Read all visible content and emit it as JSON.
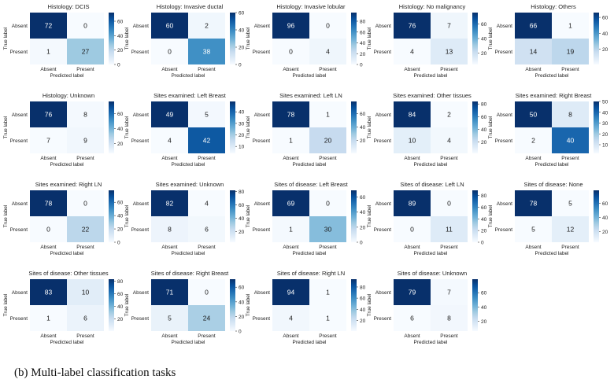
{
  "caption": "(b)  Multi-label classification tasks",
  "axis_labels": {
    "xlabel": "Predicted label",
    "ylabel": "True label",
    "classes": [
      "Absent",
      "Present"
    ]
  },
  "chart_data": [
    {
      "type": "heatmap",
      "title": "Histology: DCIS",
      "values": [
        [
          72,
          0
        ],
        [
          1,
          27
        ]
      ],
      "colorbar_ticks": [
        0,
        20,
        40,
        60
      ]
    },
    {
      "type": "heatmap",
      "title": "Histology: Invasive ductal",
      "values": [
        [
          60,
          2
        ],
        [
          0,
          38
        ]
      ],
      "colorbar_ticks": [
        0,
        20,
        40,
        60
      ]
    },
    {
      "type": "heatmap",
      "title": "Histology: Invasive lobular",
      "values": [
        [
          96,
          0
        ],
        [
          0,
          4
        ]
      ],
      "colorbar_ticks": [
        0,
        20,
        40,
        60,
        80
      ]
    },
    {
      "type": "heatmap",
      "title": "Histology: No malignancy",
      "values": [
        [
          76,
          7
        ],
        [
          4,
          13
        ]
      ],
      "colorbar_ticks": [
        20,
        40,
        60
      ]
    },
    {
      "type": "heatmap",
      "title": "Histology: Others",
      "values": [
        [
          66,
          1
        ],
        [
          14,
          19
        ]
      ],
      "colorbar_ticks": [
        20,
        40,
        60
      ]
    },
    {
      "type": "heatmap",
      "title": "Histology: Unknown",
      "values": [
        [
          76,
          8
        ],
        [
          7,
          9
        ]
      ],
      "colorbar_ticks": [
        20,
        40,
        60
      ]
    },
    {
      "type": "heatmap",
      "title": "Sites examined: Left Breast",
      "values": [
        [
          49,
          5
        ],
        [
          4,
          42
        ]
      ],
      "colorbar_ticks": [
        10,
        20,
        30,
        40
      ]
    },
    {
      "type": "heatmap",
      "title": "Sites examined: Left LN",
      "values": [
        [
          78,
          1
        ],
        [
          1,
          20
        ]
      ],
      "colorbar_ticks": [
        0,
        20,
        40,
        60
      ]
    },
    {
      "type": "heatmap",
      "title": "Sites examined: Other tissues",
      "values": [
        [
          84,
          2
        ],
        [
          10,
          4
        ]
      ],
      "colorbar_ticks": [
        20,
        40,
        60,
        80
      ]
    },
    {
      "type": "heatmap",
      "title": "Sites examined: Right Breast",
      "values": [
        [
          50,
          8
        ],
        [
          2,
          40
        ]
      ],
      "colorbar_ticks": [
        10,
        20,
        30,
        40,
        50
      ]
    },
    {
      "type": "heatmap",
      "title": "Sites examined: Right LN",
      "values": [
        [
          78,
          0
        ],
        [
          0,
          22
        ]
      ],
      "colorbar_ticks": [
        0,
        20,
        40,
        60
      ]
    },
    {
      "type": "heatmap",
      "title": "Sites examined: Unknown",
      "values": [
        [
          82,
          4
        ],
        [
          8,
          6
        ]
      ],
      "colorbar_ticks": [
        20,
        40,
        60,
        80
      ]
    },
    {
      "type": "heatmap",
      "title": "Sites of disease: Left Breast",
      "values": [
        [
          69,
          0
        ],
        [
          1,
          30
        ]
      ],
      "colorbar_ticks": [
        0,
        20,
        40,
        60
      ]
    },
    {
      "type": "heatmap",
      "title": "Sites of disease: Left LN",
      "values": [
        [
          89,
          0
        ],
        [
          0,
          11
        ]
      ],
      "colorbar_ticks": [
        0,
        20,
        40,
        60,
        80
      ]
    },
    {
      "type": "heatmap",
      "title": "Sites of disease: None",
      "values": [
        [
          78,
          5
        ],
        [
          5,
          12
        ]
      ],
      "colorbar_ticks": [
        20,
        40,
        60
      ]
    },
    {
      "type": "heatmap",
      "title": "Sites of disease: Other tissues",
      "values": [
        [
          83,
          10
        ],
        [
          1,
          6
        ]
      ],
      "colorbar_ticks": [
        0,
        20,
        40,
        60,
        80
      ]
    },
    {
      "type": "heatmap",
      "title": "Sites of disease: Right Breast",
      "values": [
        [
          71,
          0
        ],
        [
          5,
          24
        ]
      ],
      "colorbar_ticks": [
        0,
        20,
        40,
        60
      ]
    },
    {
      "type": "heatmap",
      "title": "Sites of disease: Right LN",
      "values": [
        [
          94,
          1
        ],
        [
          4,
          1
        ]
      ],
      "colorbar_ticks": [
        20,
        40,
        60,
        80
      ]
    },
    {
      "type": "heatmap",
      "title": "Sites of disease: Unknown",
      "values": [
        [
          79,
          7
        ],
        [
          6,
          8
        ]
      ],
      "colorbar_ticks": [
        20,
        40,
        60
      ]
    }
  ]
}
